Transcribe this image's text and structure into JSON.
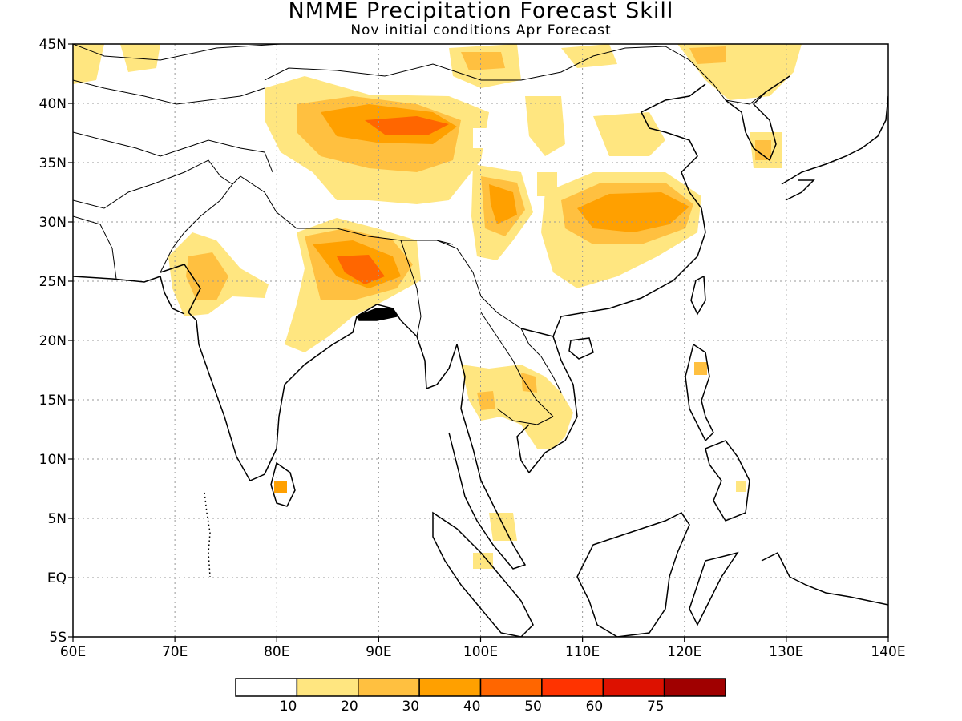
{
  "title": "NMME Precipitation Forecast Skill",
  "subtitle": "Nov initial conditions  Apr Forecast",
  "axes": {
    "lat_labels": [
      "45N",
      "40N",
      "35N",
      "30N",
      "25N",
      "20N",
      "15N",
      "10N",
      "5N",
      "EQ",
      "5S"
    ],
    "lon_labels": [
      "60E",
      "70E",
      "80E",
      "90E",
      "100E",
      "110E",
      "120E",
      "130E",
      "140E"
    ]
  },
  "colorbar": {
    "colors": [
      "#ffffff",
      "#ffe680",
      "#ffc040",
      "#ffa000",
      "#ff6600",
      "#ff3300",
      "#dd1100",
      "#a00000"
    ],
    "labels": [
      "10",
      "20",
      "30",
      "40",
      "50",
      "60",
      "75"
    ]
  },
  "regions": [
    {
      "name": "tibet-plateau",
      "levels": [
        20,
        30,
        40
      ]
    },
    {
      "name": "eastern-china",
      "levels": [
        20,
        30,
        40
      ]
    },
    {
      "name": "northeast-india-bangladesh",
      "levels": [
        20,
        30,
        40,
        50
      ]
    },
    {
      "name": "western-india",
      "levels": [
        10,
        20,
        30
      ]
    },
    {
      "name": "indochina",
      "levels": [
        10,
        20
      ]
    },
    {
      "name": "mongolia-north",
      "levels": [
        10,
        20,
        30
      ]
    },
    {
      "name": "korea",
      "levels": [
        10,
        20
      ]
    },
    {
      "name": "sri-lanka",
      "levels": [
        30
      ]
    },
    {
      "name": "malay-peninsula",
      "levels": [
        10,
        20
      ]
    },
    {
      "name": "philippines",
      "levels": [
        10,
        20
      ]
    }
  ]
}
